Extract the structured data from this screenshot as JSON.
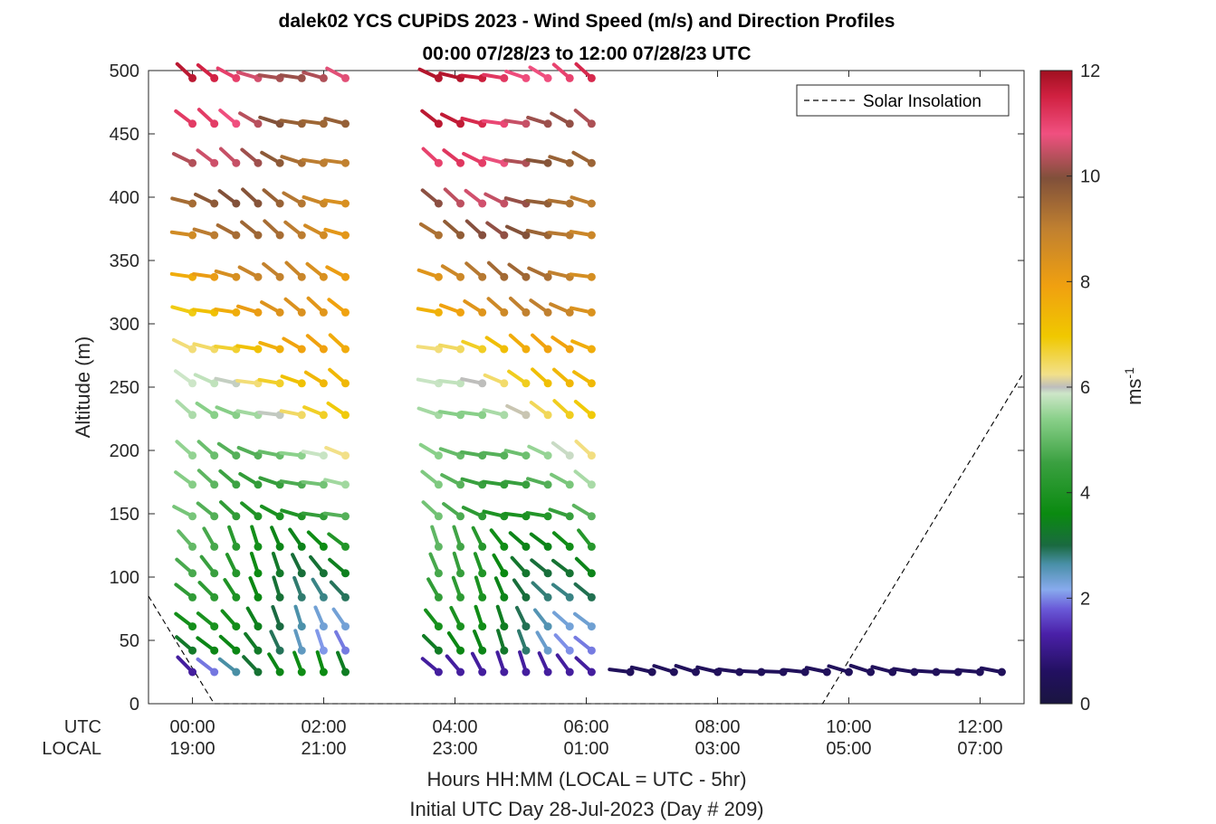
{
  "chart_data": {
    "type": "wind-barb-profile",
    "title_line1": "dalek02 YCS CUPiDS 2023 - Wind Speed (m/s) and Direction Profiles",
    "title_line2": "00:00 07/28/23 to 12:00 07/28/23  UTC",
    "ylabel": "Altitude (m)",
    "xlabel_line1": "Hours HH:MM  (LOCAL = UTC - 5hr)",
    "xlabel_line2": "Initial UTC Day 28-Jul-2023 (Day # 209)",
    "ylim": [
      0,
      500
    ],
    "y_ticks": [
      0,
      50,
      100,
      150,
      200,
      250,
      300,
      350,
      400,
      450,
      500
    ],
    "xlim_hours": [
      -0.67,
      12.67
    ],
    "x_row_labels": [
      "UTC",
      "LOCAL"
    ],
    "x_ticks": [
      {
        "hour": 0,
        "utc": "00:00",
        "local": "19:00"
      },
      {
        "hour": 2,
        "utc": "02:00",
        "local": "21:00"
      },
      {
        "hour": 4,
        "utc": "04:00",
        "local": "23:00"
      },
      {
        "hour": 6,
        "utc": "06:00",
        "local": "01:00"
      },
      {
        "hour": 8,
        "utc": "08:00",
        "local": "03:00"
      },
      {
        "hour": 10,
        "utc": "10:00",
        "local": "05:00"
      },
      {
        "hour": 12,
        "utc": "12:00",
        "local": "07:00"
      }
    ],
    "legend": {
      "label": "Solar Insolation",
      "placement": "top-right"
    },
    "colorbar": {
      "label": "ms",
      "label_exponent": "-1",
      "range": [
        0,
        12
      ],
      "ticks": [
        0,
        2,
        4,
        6,
        8,
        10,
        12
      ]
    },
    "solar_insolation": [
      [
        -0.67,
        85
      ],
      [
        0.33,
        0
      ],
      [
        9.6,
        0
      ],
      [
        12.67,
        262
      ]
    ],
    "altitudes": [
      25,
      42,
      61,
      84,
      103,
      124,
      148,
      173,
      196,
      228,
      253,
      280,
      309,
      337,
      370,
      395,
      427,
      458,
      494
    ],
    "time_blocks": [
      {
        "start": 0,
        "step": 0.333,
        "count": 8
      },
      {
        "start": 3.75,
        "step": 0.333,
        "count": 8
      },
      {
        "start": 6.67,
        "step": 0.333,
        "count": 18
      }
    ],
    "gaps": [
      {
        "hours": [
          2.7,
          3.75
        ],
        "alt_min": 210
      },
      {
        "hours": [
          6.35,
          6.67
        ],
        "alt_min": 210
      },
      {
        "hours": [
          6.5,
          12.67
        ],
        "alt_min": 40
      }
    ]
  }
}
